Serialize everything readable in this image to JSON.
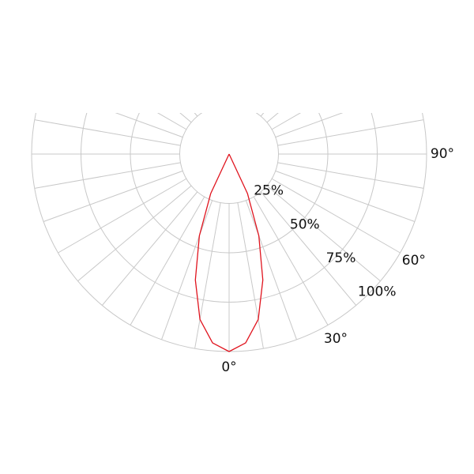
{
  "chart_data": {
    "type": "polar",
    "series": [
      {
        "color": "#e0141e",
        "x": [
          -30,
          -25,
          -20,
          -15,
          -10,
          -5,
          0,
          5,
          10,
          15,
          20,
          25,
          30
        ],
        "values": [
          0,
          22,
          44,
          66,
          85,
          96,
          100,
          96,
          85,
          66,
          44,
          22,
          0
        ]
      }
    ],
    "rlim": [
      0,
      100
    ],
    "rticks": [
      {
        "value": 25,
        "label": "25%"
      },
      {
        "value": 50,
        "label": "50%"
      },
      {
        "value": 75,
        "label": "75%"
      },
      {
        "value": 100,
        "label": "100%"
      }
    ],
    "thetaticks": [
      {
        "value": 0,
        "label": "0°"
      },
      {
        "value": 30,
        "label": "30°"
      },
      {
        "value": 60,
        "label": "60°"
      },
      {
        "value": 90,
        "label": "90°"
      }
    ],
    "theta_gridlines": [
      -170,
      -160,
      -150,
      -140,
      -130,
      -120,
      -110,
      -100,
      -90,
      -80,
      -70,
      -60,
      -50,
      -40,
      -30,
      -20,
      -10,
      0,
      10,
      20,
      30,
      40,
      50,
      60,
      70,
      80,
      90,
      100,
      110,
      120,
      130,
      140,
      150,
      160,
      170,
      180
    ],
    "grid_color": "#c8c8c8"
  }
}
